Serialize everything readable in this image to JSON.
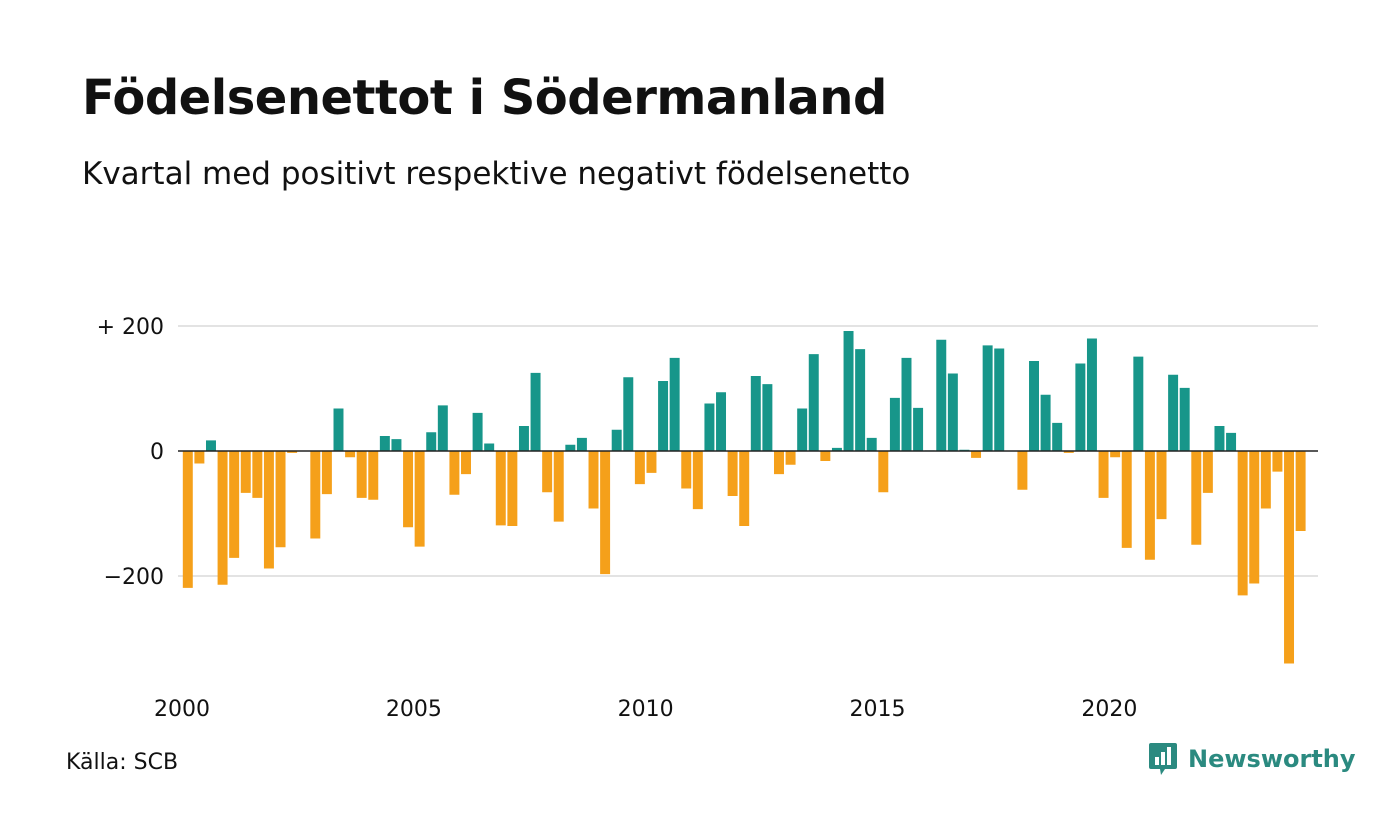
{
  "header": {
    "title": "Födelsenettot i Södermanland",
    "subtitle": "Kvartal med positivt respektive negativt födelsenetto"
  },
  "footer": {
    "source": "Källa: SCB",
    "brand": "Newsworthy",
    "brand_icon": "newsworthy-chart-icon"
  },
  "colors": {
    "positive": "#17968a",
    "negative": "#f5a01a",
    "gridline": "#e3e3e3",
    "zero_line": "#222222",
    "brand": "#2b8a80"
  },
  "chart_data": {
    "type": "bar",
    "title": "Födelsenettot i Södermanland",
    "subtitle": "Kvartal med positivt respektive negativt födelsenetto",
    "xlabel": "",
    "ylabel": "",
    "x_range": [
      2000,
      2024.5
    ],
    "ylim": [
      -340,
      200
    ],
    "grid": true,
    "legend": "none",
    "y_ticks": [
      {
        "value": 200,
        "label": "+ 200"
      },
      {
        "value": 0,
        "label": "0"
      },
      {
        "value": -200,
        "label": "−200"
      }
    ],
    "x_ticks": [
      {
        "value": 2000,
        "label": "2000"
      },
      {
        "value": 2005,
        "label": "2005"
      },
      {
        "value": 2010,
        "label": "2010"
      },
      {
        "value": 2015,
        "label": "2015"
      },
      {
        "value": 2020,
        "label": "2020"
      }
    ],
    "series": [
      {
        "name": "Födelsenetto",
        "period_start": "2000 Q1",
        "frequency": "quarterly",
        "values": [
          -219,
          -20,
          17,
          -214,
          -171,
          -67,
          -75,
          -188,
          -154,
          -3,
          0,
          -140,
          -69,
          68,
          -10,
          -75,
          -78,
          24,
          19,
          -122,
          -153,
          30,
          73,
          -70,
          -37,
          61,
          12,
          -119,
          -120,
          40,
          125,
          -66,
          -113,
          10,
          21,
          -92,
          -197,
          34,
          118,
          -53,
          -35,
          112,
          149,
          -60,
          -93,
          76,
          94,
          -72,
          -120,
          120,
          107,
          -37,
          -22,
          68,
          155,
          -16,
          5,
          192,
          163,
          21,
          -66,
          85,
          149,
          69,
          1,
          178,
          124,
          2,
          -11,
          169,
          164,
          0,
          -62,
          144,
          90,
          45,
          -3,
          140,
          180,
          -75,
          -10,
          -155,
          151,
          -174,
          -109,
          122,
          101,
          -150,
          -67,
          40,
          29,
          -231,
          -212,
          -92,
          -33,
          -340,
          -128
        ]
      }
    ]
  }
}
